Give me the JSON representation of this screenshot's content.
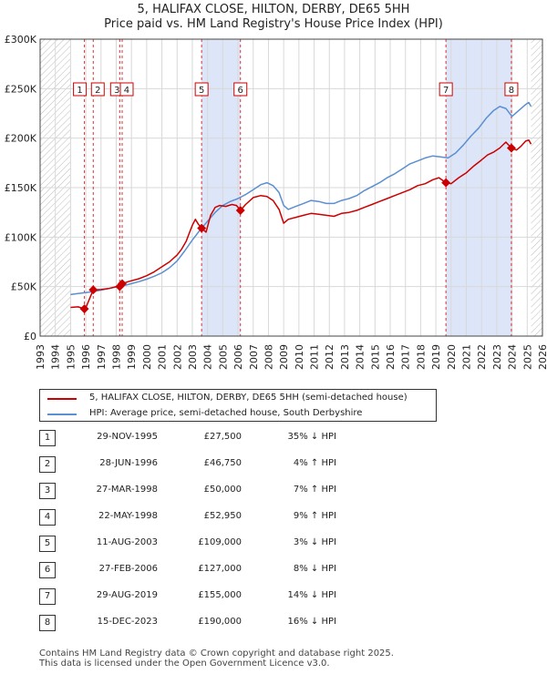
{
  "title_line1": "5, HALIFAX CLOSE, HILTON, DERBY, DE65 5HH",
  "title_line2": "Price paid vs. HM Land Registry's House Price Index (HPI)",
  "legend": {
    "property_label": "5, HALIFAX CLOSE, HILTON, DERBY, DE65 5HH (semi-detached house)",
    "hpi_label": "HPI: Average price, semi-detached house, South Derbyshire"
  },
  "colors": {
    "property": "#cc0000",
    "hpi": "#5b8fd1",
    "shade": "#dde6f8",
    "hatch": "#bbbbbb"
  },
  "chart_data": {
    "type": "line",
    "xlim": [
      1993,
      2026
    ],
    "ylim": [
      0,
      300000
    ],
    "x_ticks": [
      1993,
      1994,
      1995,
      1996,
      1997,
      1998,
      1999,
      2000,
      2001,
      2002,
      2003,
      2004,
      2005,
      2006,
      2007,
      2008,
      2009,
      2010,
      2011,
      2012,
      2013,
      2014,
      2015,
      2016,
      2017,
      2018,
      2019,
      2020,
      2021,
      2022,
      2023,
      2024,
      2025,
      2026
    ],
    "y_ticks": [
      {
        "value": 0,
        "label": "£0"
      },
      {
        "value": 50000,
        "label": "£50K"
      },
      {
        "value": 100000,
        "label": "£100K"
      },
      {
        "value": 150000,
        "label": "£150K"
      },
      {
        "value": 200000,
        "label": "£200K"
      },
      {
        "value": 250000,
        "label": "£250K"
      },
      {
        "value": 300000,
        "label": "£300K"
      }
    ],
    "grid": true,
    "hatched_ranges": [
      [
        1993,
        1995.0
      ],
      [
        2025.25,
        2026
      ]
    ],
    "shaded_ranges": [
      [
        2003.6,
        2006.16
      ],
      [
        2019.66,
        2023.96
      ]
    ],
    "series": [
      {
        "name": "5, HALIFAX CLOSE, HILTON, DERBY, DE65 5HH (semi-detached house)",
        "x": [
          1995.0,
          1995.5,
          1995.91,
          1996.0,
          1996.49,
          1997.0,
          1997.5,
          1998.0,
          1998.23,
          1998.39,
          1998.8,
          1999.5,
          2000.0,
          2000.5,
          2001.0,
          2001.5,
          2002.0,
          2002.3,
          2002.6,
          2002.8,
          2003.0,
          2003.2,
          2003.4,
          2003.61,
          2003.9,
          2004.2,
          2004.5,
          2004.8,
          2005.2,
          2005.6,
          2005.9,
          2006.16,
          2006.5,
          2007.0,
          2007.5,
          2007.9,
          2008.3,
          2008.7,
          2009.0,
          2009.3,
          2009.8,
          2010.3,
          2010.8,
          2011.3,
          2011.8,
          2012.3,
          2012.8,
          2013.3,
          2013.8,
          2014.3,
          2014.8,
          2015.3,
          2015.8,
          2016.3,
          2016.8,
          2017.3,
          2017.8,
          2018.3,
          2018.8,
          2019.2,
          2019.66,
          2020.0,
          2020.5,
          2021.0,
          2021.5,
          2022.0,
          2022.4,
          2022.8,
          2023.2,
          2023.6,
          2023.96,
          2024.3,
          2024.6,
          2024.9,
          2025.1,
          2025.25
        ],
        "y": [
          29000,
          29500,
          27500,
          28500,
          46750,
          47000,
          48000,
          50000,
          50000,
          52950,
          55000,
          58000,
          61000,
          65000,
          70000,
          75000,
          82000,
          88000,
          96000,
          104000,
          112000,
          118000,
          113000,
          109000,
          105000,
          122000,
          130000,
          132000,
          131000,
          133000,
          132000,
          127000,
          133000,
          140000,
          142000,
          141000,
          137000,
          128000,
          114000,
          118000,
          120000,
          122000,
          124000,
          123000,
          122000,
          121000,
          124000,
          125000,
          127000,
          130000,
          133000,
          136000,
          139000,
          142000,
          145000,
          148000,
          152000,
          154000,
          158000,
          160000,
          155000,
          154000,
          160000,
          165000,
          172000,
          178000,
          183000,
          186000,
          190000,
          196000,
          190000,
          188000,
          192000,
          197000,
          198000,
          194000
        ]
      },
      {
        "name": "HPI: Average price, semi-detached house, South Derbyshire",
        "x": [
          1995.0,
          1995.5,
          1996.0,
          1996.5,
          1997.0,
          1997.5,
          1998.0,
          1998.5,
          1999.0,
          1999.5,
          2000.0,
          2000.5,
          2001.0,
          2001.5,
          2002.0,
          2002.5,
          2003.0,
          2003.5,
          2004.0,
          2004.5,
          2005.0,
          2005.5,
          2006.0,
          2006.5,
          2007.0,
          2007.5,
          2007.9,
          2008.3,
          2008.7,
          2009.0,
          2009.3,
          2009.8,
          2010.3,
          2010.8,
          2011.3,
          2011.8,
          2012.3,
          2012.8,
          2013.3,
          2013.8,
          2014.3,
          2014.8,
          2015.3,
          2015.8,
          2016.3,
          2016.8,
          2017.3,
          2017.8,
          2018.3,
          2018.8,
          2019.3,
          2019.8,
          2020.3,
          2020.8,
          2021.3,
          2021.8,
          2022.3,
          2022.8,
          2023.2,
          2023.6,
          2024.0,
          2024.3,
          2024.6,
          2024.9,
          2025.1,
          2025.25
        ],
        "y": [
          42000,
          43000,
          44000,
          45000,
          46500,
          48000,
          49500,
          51000,
          53000,
          55000,
          57500,
          60500,
          64000,
          69000,
          76000,
          86000,
          97000,
          107000,
          116000,
          125000,
          132000,
          136000,
          139000,
          143000,
          148000,
          153000,
          155000,
          152000,
          145000,
          132000,
          128000,
          131000,
          134000,
          137000,
          136000,
          134000,
          134000,
          137000,
          139000,
          142000,
          147000,
          151000,
          155000,
          160000,
          164000,
          169000,
          174000,
          177000,
          180000,
          182000,
          181000,
          180000,
          185000,
          193000,
          202000,
          210000,
          220000,
          228000,
          232000,
          230000,
          222000,
          226000,
          230000,
          234000,
          236000,
          232000
        ]
      }
    ],
    "sales": [
      {
        "num": "1",
        "x": 1995.91,
        "y": 27500
      },
      {
        "num": "2",
        "x": 1996.49,
        "y": 46750
      },
      {
        "num": "3",
        "x": 1998.23,
        "y": 50000
      },
      {
        "num": "4",
        "x": 1998.39,
        "y": 52950
      },
      {
        "num": "5",
        "x": 2003.61,
        "y": 109000
      },
      {
        "num": "6",
        "x": 2006.16,
        "y": 127000
      },
      {
        "num": "7",
        "x": 2019.66,
        "y": 155000
      },
      {
        "num": "8",
        "x": 2023.96,
        "y": 190000
      }
    ]
  },
  "transactions": [
    {
      "num": "1",
      "date": "29-NOV-1995",
      "price": "£27,500",
      "hpi": "35% ↓ HPI"
    },
    {
      "num": "2",
      "date": "28-JUN-1996",
      "price": "£46,750",
      "hpi": "4% ↑ HPI"
    },
    {
      "num": "3",
      "date": "27-MAR-1998",
      "price": "£50,000",
      "hpi": "7% ↑ HPI"
    },
    {
      "num": "4",
      "date": "22-MAY-1998",
      "price": "£52,950",
      "hpi": "9% ↑ HPI"
    },
    {
      "num": "5",
      "date": "11-AUG-2003",
      "price": "£109,000",
      "hpi": "3% ↓ HPI"
    },
    {
      "num": "6",
      "date": "27-FEB-2006",
      "price": "£127,000",
      "hpi": "8% ↓ HPI"
    },
    {
      "num": "7",
      "date": "29-AUG-2019",
      "price": "£155,000",
      "hpi": "14% ↓ HPI"
    },
    {
      "num": "8",
      "date": "15-DEC-2023",
      "price": "£190,000",
      "hpi": "16% ↓ HPI"
    }
  ],
  "footer": {
    "line1": "Contains HM Land Registry data © Crown copyright and database right 2025.",
    "line2": "This data is licensed under the Open Government Licence v3.0."
  }
}
